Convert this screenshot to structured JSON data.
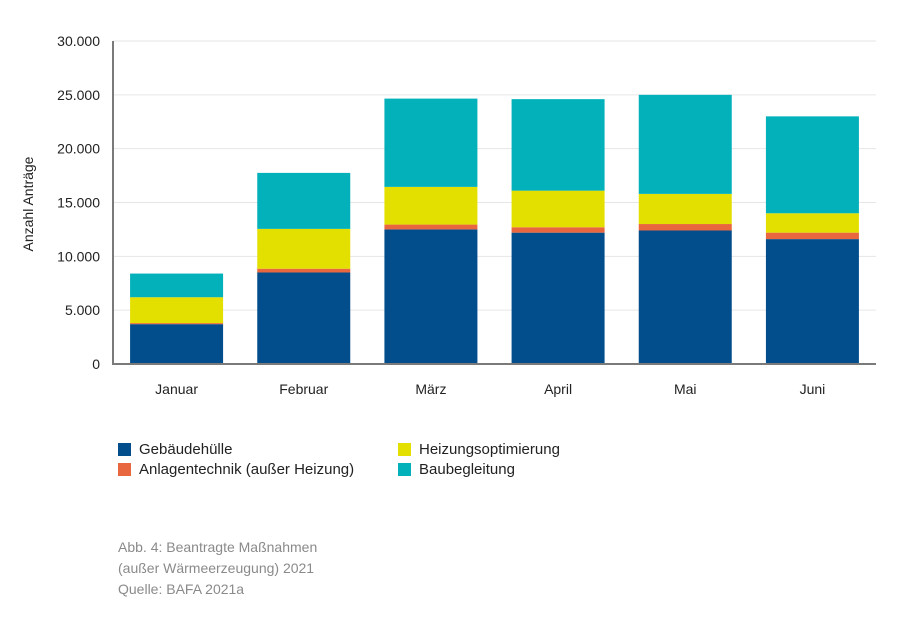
{
  "chart_data": {
    "type": "bar",
    "stacked": true,
    "categories": [
      "Januar",
      "Februar",
      "März",
      "April",
      "Mai",
      "Juni"
    ],
    "series": [
      {
        "name": "Gebäudehülle",
        "color": "#024d8c",
        "values": [
          3700,
          8500,
          12500,
          12200,
          12400,
          11600
        ]
      },
      {
        "name": "Anlagentechnik (außer Heizung)",
        "color": "#e9673f",
        "values": [
          100,
          350,
          450,
          500,
          600,
          600
        ]
      },
      {
        "name": "Heizungsoptimierung",
        "color": "#e3e000",
        "values": [
          2400,
          3700,
          3500,
          3400,
          2800,
          1800
        ]
      },
      {
        "name": "Baubegleitung",
        "color": "#03b1bb",
        "values": [
          2200,
          5200,
          8200,
          8500,
          9200,
          9000
        ]
      }
    ],
    "ylabel": "Anzahl Anträge",
    "xlabel": "",
    "ylim": [
      0,
      30000
    ],
    "yticks": [
      0,
      5000,
      10000,
      15000,
      20000,
      25000,
      30000
    ],
    "ytick_labels": [
      "0",
      "5.000",
      "10.000",
      "15.000",
      "20.000",
      "25.000",
      "30.000"
    ],
    "grid": true,
    "legend_position": "bottom"
  },
  "legend": {
    "items": [
      {
        "label": "Gebäudehülle",
        "color": "#024d8c"
      },
      {
        "label": "Heizungsoptimierung",
        "color": "#e3e000"
      },
      {
        "label": "Anlagentechnik (außer Heizung)",
        "color": "#e9673f"
      },
      {
        "label": "Baubegleitung",
        "color": "#03b1bb"
      }
    ]
  },
  "caption": {
    "line1": "Abb. 4: Beantragte Maßnahmen",
    "line2": "(außer Wärmeerzeugung) 2021",
    "line3": "Quelle: BAFA 2021a"
  }
}
